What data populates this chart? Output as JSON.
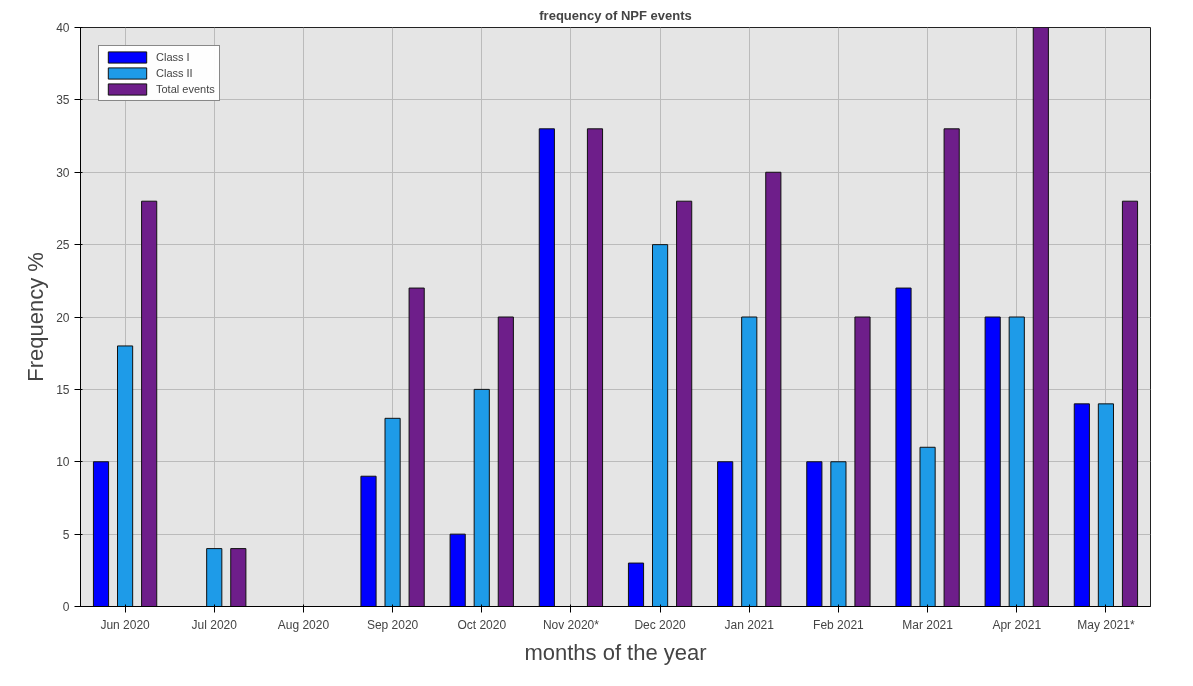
{
  "chart_data": {
    "type": "bar",
    "title": "frequency of NPF events",
    "xlabel": "months of the year",
    "ylabel": "Frequency %",
    "categories": [
      "Jun 2020",
      "Jul 2020",
      "Aug 2020",
      "Sep 2020",
      "Oct 2020",
      "Nov 2020*",
      "Dec 2020",
      "Jan 2021",
      "Feb 2021",
      "Mar 2021",
      "Apr 2021",
      "May 2021*"
    ],
    "series": [
      {
        "name": "Class I",
        "color": "#0000ff",
        "values": [
          10,
          0,
          0,
          9,
          5,
          33,
          3,
          10,
          10,
          22,
          20,
          14
        ]
      },
      {
        "name": "Class II",
        "color": "#1e9be8",
        "values": [
          18,
          4,
          0,
          13,
          15,
          0,
          25,
          20,
          10,
          11,
          20,
          14
        ]
      },
      {
        "name": "Total events",
        "color": "#6e1e8a",
        "values": [
          28,
          4,
          0,
          22,
          20,
          33,
          28,
          30,
          20,
          33,
          40,
          28
        ]
      }
    ],
    "ylim": [
      0,
      40
    ],
    "yticks": [
      0,
      5,
      10,
      15,
      20,
      25,
      30,
      35,
      40
    ],
    "grid": true,
    "legend": "top left"
  }
}
